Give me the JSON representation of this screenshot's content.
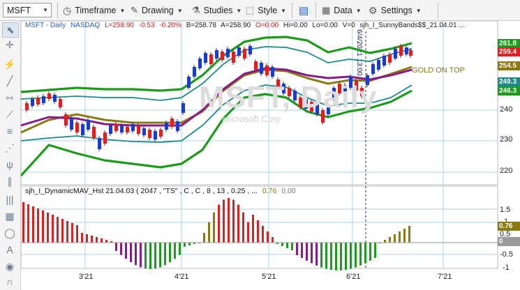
{
  "toolbar": {
    "symbol": "MSFT",
    "timeframe": "Timeframe",
    "drawing": "Drawing",
    "studies": "Studies",
    "style": "Style",
    "data": "Data",
    "settings": "Settings"
  },
  "price_legend": {
    "title": "MSFT - Daily",
    "exchange": "NASDAQ",
    "last": "L=258.90",
    "change": "-0.53",
    "change_pct": "-0.20%",
    "bid": "B=258.78",
    "ask": "A=258.90",
    "open": "O=0.00",
    "high": "Hi=0.00",
    "low": "Lo=0.00",
    "volume": "V=0",
    "study": "sjh_I_SunnyBands$$_21.04.01 ..."
  },
  "watermark": {
    "symbol": "MSFT, Daily",
    "company": "Microsoft Corp"
  },
  "annotation": {
    "gold_on_top": "GOLD ON TOP",
    "cursor_date": "6/4/2021 13:00"
  },
  "indicator_legend": {
    "text": "sjh_I_DynamicMAV_Hst 21.04.03 ( 2047 , \"TS\" , C , C ,  8 , 13 , 0.25 , ...",
    "v1": "0.76",
    "v2": "0.00"
  },
  "price_axis": {
    "ticks": [
      "220",
      "230",
      "240"
    ],
    "tags": [
      "261.8",
      "259.4",
      "254.5",
      "249.3",
      "246.3"
    ]
  },
  "ind_axis": {
    "ticks": [
      "1.5",
      "1",
      "0.5",
      "-0.5",
      "-1"
    ],
    "tags": [
      "0.76",
      "0"
    ]
  },
  "x_axis": {
    "ticks": [
      "3'21",
      "4'21",
      "5'21",
      "6'21",
      "7'21"
    ]
  },
  "colors": {
    "green": "#1a9b1a",
    "teal": "#1a8a8a",
    "purple": "#8a1a8a",
    "olive": "#8a7a10",
    "red": "#e02020",
    "blue": "#1a3ad0"
  }
}
